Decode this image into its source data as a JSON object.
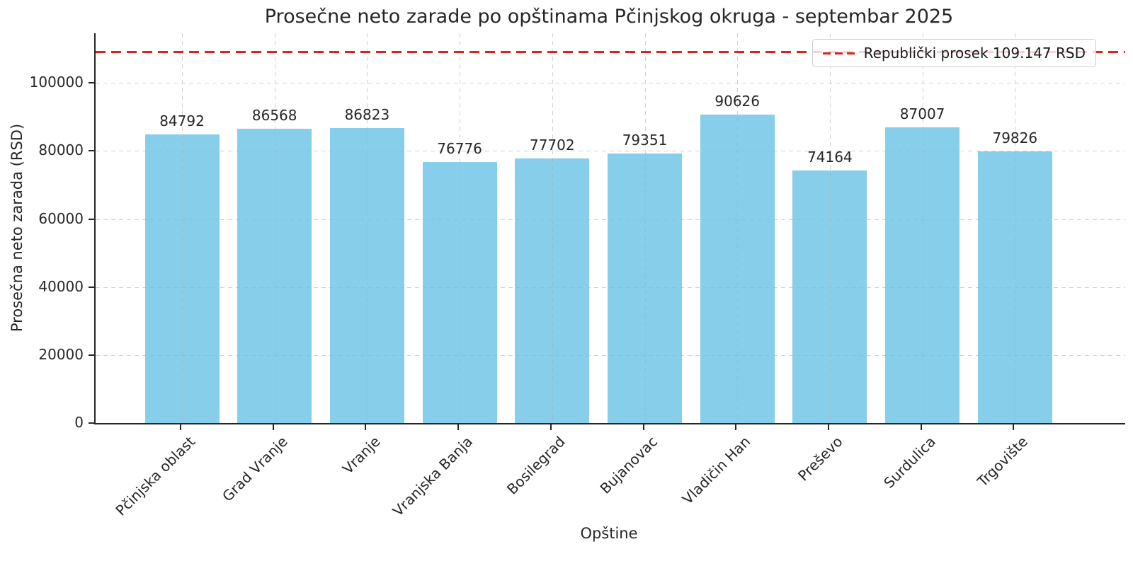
{
  "chart_data": {
    "type": "bar",
    "title": "Prosečne neto zarade po opštinama Pčinjskog okruga - septembar 2025",
    "xlabel": "Opštine",
    "ylabel": "Prosečna neto zarada (RSD)",
    "categories": [
      "Pčinjska oblast",
      "Grad Vranje",
      "Vranje",
      "Vranjska Banja",
      "Bosilegrad",
      "Bujanovac",
      "Vladičin Han",
      "Preševo",
      "Surdulica",
      "Trgovište"
    ],
    "values": [
      84792,
      86568,
      86823,
      76776,
      77702,
      79351,
      90626,
      74164,
      87007,
      79826
    ],
    "bar_color": "#87CEEB",
    "yticks": [
      0,
      20000,
      40000,
      60000,
      80000,
      100000
    ],
    "ylim": [
      0,
      114604
    ],
    "grid": true,
    "legend_position": "upper right",
    "reference_line": {
      "value": 109147,
      "label": "Republički prosek 109.147 RSD",
      "color": "#e01f1f",
      "style": "dashed"
    }
  }
}
